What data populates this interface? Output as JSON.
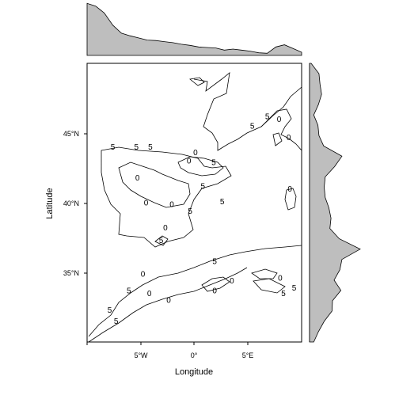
{
  "chart_data": {
    "type": "contour",
    "xlabel": "Longitude",
    "ylabel": "Latitude",
    "x_ticks": [
      "5°W",
      "0°",
      "5°E"
    ],
    "y_ticks": [
      "35°N",
      "40°N",
      "45°N"
    ],
    "x_tick_values": [
      -5,
      0,
      5
    ],
    "y_tick_values": [
      35,
      40,
      45
    ],
    "xlim": [
      -10,
      10
    ],
    "ylim": [
      30,
      50
    ],
    "contour_level_labels": [
      {
        "text": "5",
        "lon": -7.6,
        "lat": 43.8
      },
      {
        "text": "5",
        "lon": -5.4,
        "lat": 43.8
      },
      {
        "text": "5",
        "lon": -4.1,
        "lat": 43.8
      },
      {
        "text": "0",
        "lon": 0.1,
        "lat": 43.4
      },
      {
        "text": "0",
        "lon": -0.5,
        "lat": 42.8
      },
      {
        "text": "5",
        "lon": 1.8,
        "lat": 42.7
      },
      {
        "text": "0",
        "lon": -5.3,
        "lat": 41.6
      },
      {
        "text": "0",
        "lon": -4.5,
        "lat": 39.8
      },
      {
        "text": "0",
        "lon": -2.1,
        "lat": 39.7
      },
      {
        "text": "5",
        "lon": 0.8,
        "lat": 41.0
      },
      {
        "text": "5",
        "lon": 2.6,
        "lat": 39.9
      },
      {
        "text": "5",
        "lon": -0.4,
        "lat": 39.2
      },
      {
        "text": "0",
        "lon": -2.7,
        "lat": 38.0
      },
      {
        "text": "5",
        "lon": -3.1,
        "lat": 37.1
      },
      {
        "text": "5",
        "lon": 1.9,
        "lat": 35.6
      },
      {
        "text": "5",
        "lon": 6.8,
        "lat": 46.0
      },
      {
        "text": "5",
        "lon": 5.4,
        "lat": 45.3
      },
      {
        "text": "0",
        "lon": 7.9,
        "lat": 45.8
      },
      {
        "text": "0",
        "lon": 8.8,
        "lat": 44.5
      },
      {
        "text": "0",
        "lon": 8.9,
        "lat": 40.8
      },
      {
        "text": "0",
        "lon": -4.8,
        "lat": 34.7
      },
      {
        "text": "5",
        "lon": -6.1,
        "lat": 33.5
      },
      {
        "text": "0",
        "lon": -4.2,
        "lat": 33.3
      },
      {
        "text": "0",
        "lon": -2.4,
        "lat": 32.8
      },
      {
        "text": "0",
        "lon": 1.9,
        "lat": 33.5
      },
      {
        "text": "0",
        "lon": 3.5,
        "lat": 34.2
      },
      {
        "text": "0",
        "lon": 8.0,
        "lat": 34.4
      },
      {
        "text": "5",
        "lon": 9.3,
        "lat": 33.7
      },
      {
        "text": "5",
        "lon": 8.3,
        "lat": 33.3
      },
      {
        "text": "5",
        "lon": -7.9,
        "lat": 32.1
      },
      {
        "text": "5",
        "lon": -7.3,
        "lat": 31.3
      }
    ],
    "top_marginal_density": [
      0.98,
      0.93,
      0.8,
      0.57,
      0.42,
      0.37,
      0.33,
      0.29,
      0.28,
      0.26,
      0.24,
      0.21,
      0.19,
      0.16,
      0.15,
      0.14,
      0.1,
      0.12,
      0.1,
      0.08,
      0.05,
      0.04,
      0.16,
      0.2,
      0.13,
      0.06
    ],
    "right_marginal_density": [
      0.03,
      0.18,
      0.2,
      0.23,
      0.17,
      0.08,
      0.16,
      0.18,
      0.27,
      0.62,
      0.48,
      0.3,
      0.28,
      0.3,
      0.37,
      0.41,
      0.39,
      0.57,
      0.97,
      0.62,
      0.58,
      0.47,
      0.6,
      0.44,
      0.43,
      0.28,
      0.17,
      0.08
    ]
  }
}
